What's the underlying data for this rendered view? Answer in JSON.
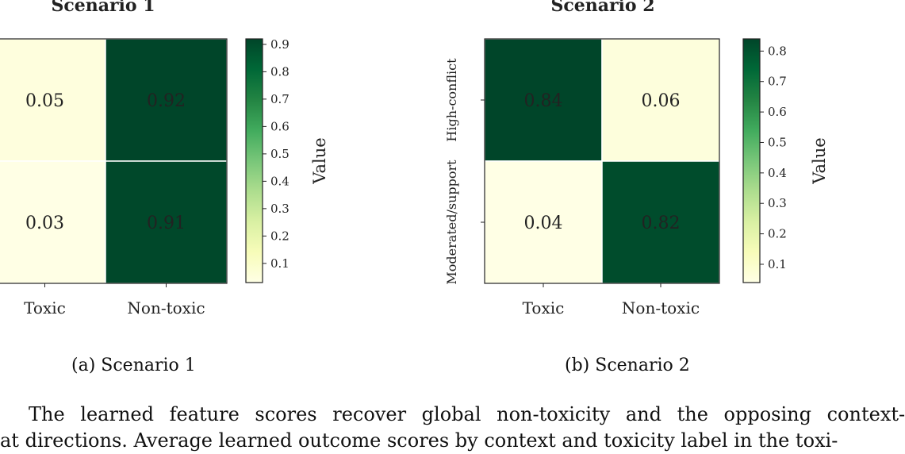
{
  "chart_data": [
    {
      "type": "heatmap",
      "title": "Scenario 1",
      "x_categories": [
        "Toxic",
        "Non-toxic"
      ],
      "y_categories": [
        "",
        ""
      ],
      "values": [
        [
          0.05,
          0.92
        ],
        [
          0.03,
          0.91
        ]
      ],
      "colorbar": {
        "label": "Value",
        "ticks": [
          0.1,
          0.2,
          0.3,
          0.4,
          0.5,
          0.6,
          0.7,
          0.8,
          0.9
        ],
        "range": [
          0.03,
          0.92
        ]
      },
      "colormap": [
        "#ffffe5",
        "#f7fcb9",
        "#d9f0a3",
        "#addd8e",
        "#78c679",
        "#41ab5d",
        "#238443",
        "#006837",
        "#004529"
      ]
    },
    {
      "type": "heatmap",
      "title": "Scenario 2",
      "x_categories": [
        "Toxic",
        "Non-toxic"
      ],
      "y_categories": [
        "High-conflict",
        "Moderated/support"
      ],
      "values": [
        [
          0.84,
          0.06
        ],
        [
          0.04,
          0.82
        ]
      ],
      "colorbar": {
        "label": "Value",
        "ticks": [
          0.1,
          0.2,
          0.3,
          0.4,
          0.5,
          0.6,
          0.7,
          0.8
        ],
        "range": [
          0.04,
          0.84
        ]
      },
      "colormap": [
        "#ffffe5",
        "#f7fcb9",
        "#d9f0a3",
        "#addd8e",
        "#78c679",
        "#41ab5d",
        "#238443",
        "#006837",
        "#004529"
      ]
    }
  ],
  "captions": [
    "(a) Scenario 1",
    "(b) Scenario 2"
  ],
  "body_lines": [
    "The learned feature scores recover global non-toxicity and the opposing context-",
    "at directions. Average learned outcome scores by context and toxicity label in the toxi-"
  ]
}
